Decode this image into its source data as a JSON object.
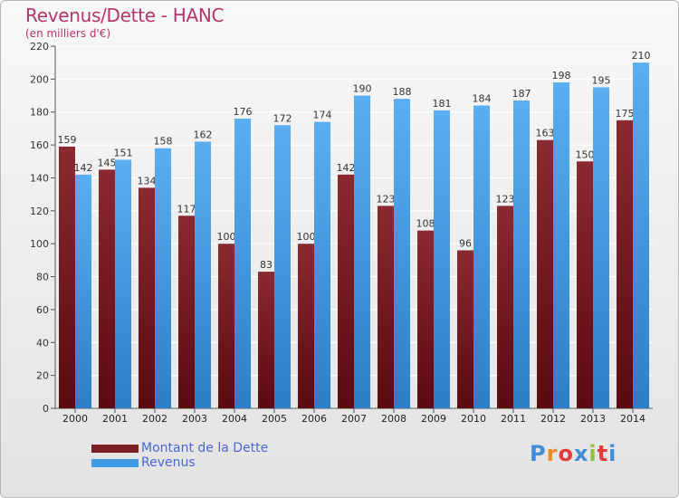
{
  "header": {
    "title": "Revenus/Dette - HANC",
    "subtitle": "(en milliers d'€)"
  },
  "legend": {
    "items": [
      {
        "label": "Montant de la Dette",
        "color": "#7a1e24"
      },
      {
        "label": "Revenus",
        "color": "#3e9be6"
      }
    ]
  },
  "logo": {
    "text": "Proxiti",
    "letter_colors": [
      "#3f8fd8",
      "#f08a24",
      "#e23b3b",
      "#3f8fd8",
      "#8fc342",
      "#e23b3b",
      "#3f8fd8"
    ]
  },
  "chart_data": {
    "type": "bar",
    "categories": [
      "2000",
      "2001",
      "2002",
      "2003",
      "2004",
      "2005",
      "2006",
      "2007",
      "2008",
      "2009",
      "2010",
      "2011",
      "2012",
      "2013",
      "2014"
    ],
    "series": [
      {
        "name": "Montant de la Dette",
        "color": "#7a1e24",
        "values": [
          159,
          145,
          134,
          117,
          100,
          83,
          100,
          142,
          123,
          108,
          96,
          123,
          163,
          150,
          175
        ]
      },
      {
        "name": "Revenus",
        "color": "#3e9be6",
        "values": [
          142,
          151,
          158,
          162,
          176,
          172,
          174,
          190,
          188,
          181,
          184,
          187,
          198,
          195,
          210
        ]
      }
    ],
    "title": "Revenus/Dette - HANC",
    "subtitle": "(en milliers d'€)",
    "xlabel": "",
    "ylabel": "",
    "ylim": [
      0,
      220
    ],
    "yticks": [
      0,
      20,
      40,
      60,
      80,
      100,
      120,
      140,
      160,
      180,
      200,
      220
    ],
    "grid": true,
    "legend_position": "bottom-left"
  }
}
